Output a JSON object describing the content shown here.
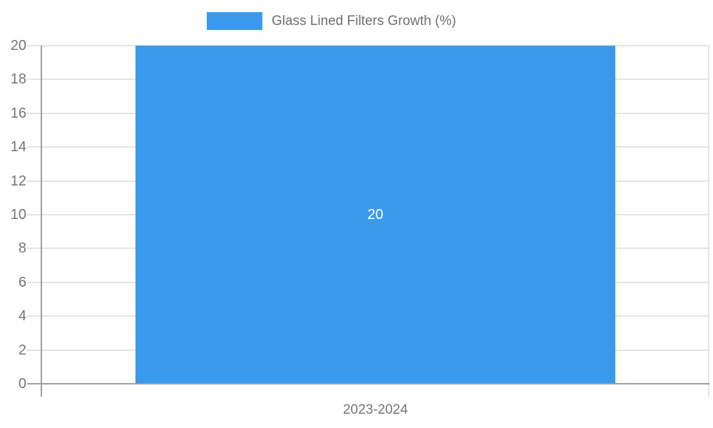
{
  "chart_data": {
    "type": "bar",
    "title": "",
    "legend_label": "Glass Lined Filters Growth (%)",
    "legend_position": "top",
    "categories": [
      "2023-2024"
    ],
    "series": [
      {
        "name": "Glass Lined Filters Growth (%)",
        "values": [
          20
        ]
      }
    ],
    "bar_value_label": "20",
    "xlabel": "",
    "ylabel": "",
    "ylim": [
      0,
      20
    ],
    "yticks": [
      0,
      2,
      4,
      6,
      8,
      10,
      12,
      14,
      16,
      18,
      20
    ],
    "grid": true,
    "legend_clickable": true,
    "colors": {
      "bar": "#3B99EC",
      "grid": "#E4E4E4",
      "axis": "#9E9E9E",
      "tick_text": "#757575",
      "legend_text": "#6E6E6E",
      "bar_label_text": "#FFFFFF"
    }
  }
}
